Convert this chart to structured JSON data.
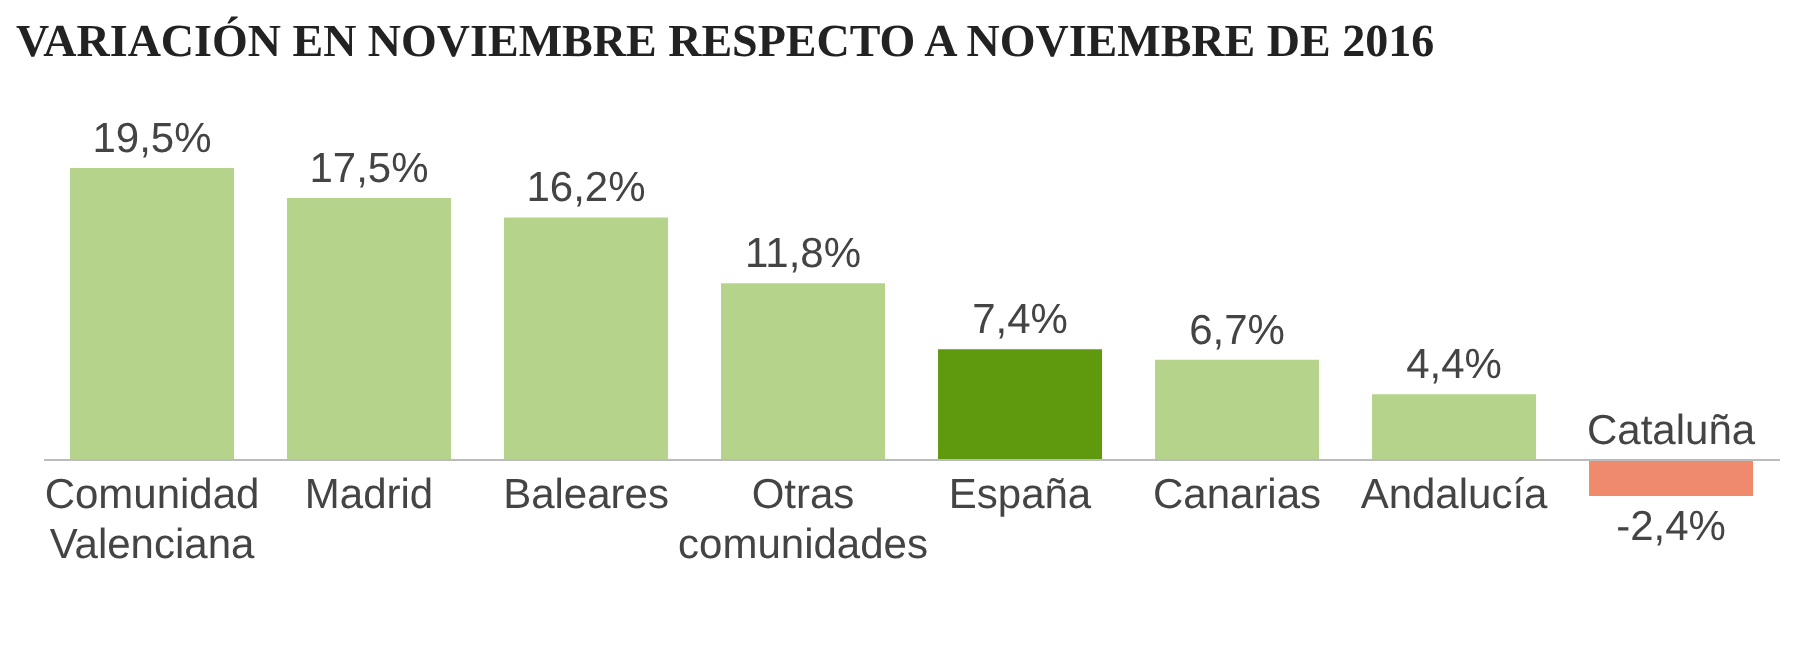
{
  "chart_data": {
    "type": "bar",
    "title": "VARIACIÓN EN NOVIEMBRE RESPECTO A NOVIEMBRE DE 2016",
    "categories": [
      "Comunidad Valenciana",
      "Madrid",
      "Baleares",
      "Otras comunidades",
      "España",
      "Canarias",
      "Andalucía",
      "Cataluña"
    ],
    "values": [
      19.5,
      17.5,
      16.2,
      11.8,
      7.4,
      6.7,
      4.4,
      -2.4
    ],
    "value_labels": [
      "19,5%",
      "17,5%",
      "16,2%",
      "11,8%",
      "7,4%",
      "6,7%",
      "4,4%",
      "-2,4%"
    ],
    "colors": [
      "#b5d38a",
      "#b5d38a",
      "#b5d38a",
      "#b5d38a",
      "#5f9a0e",
      "#b5d38a",
      "#b5d38a",
      "#f08a6c"
    ],
    "grid": false,
    "legend": false
  }
}
